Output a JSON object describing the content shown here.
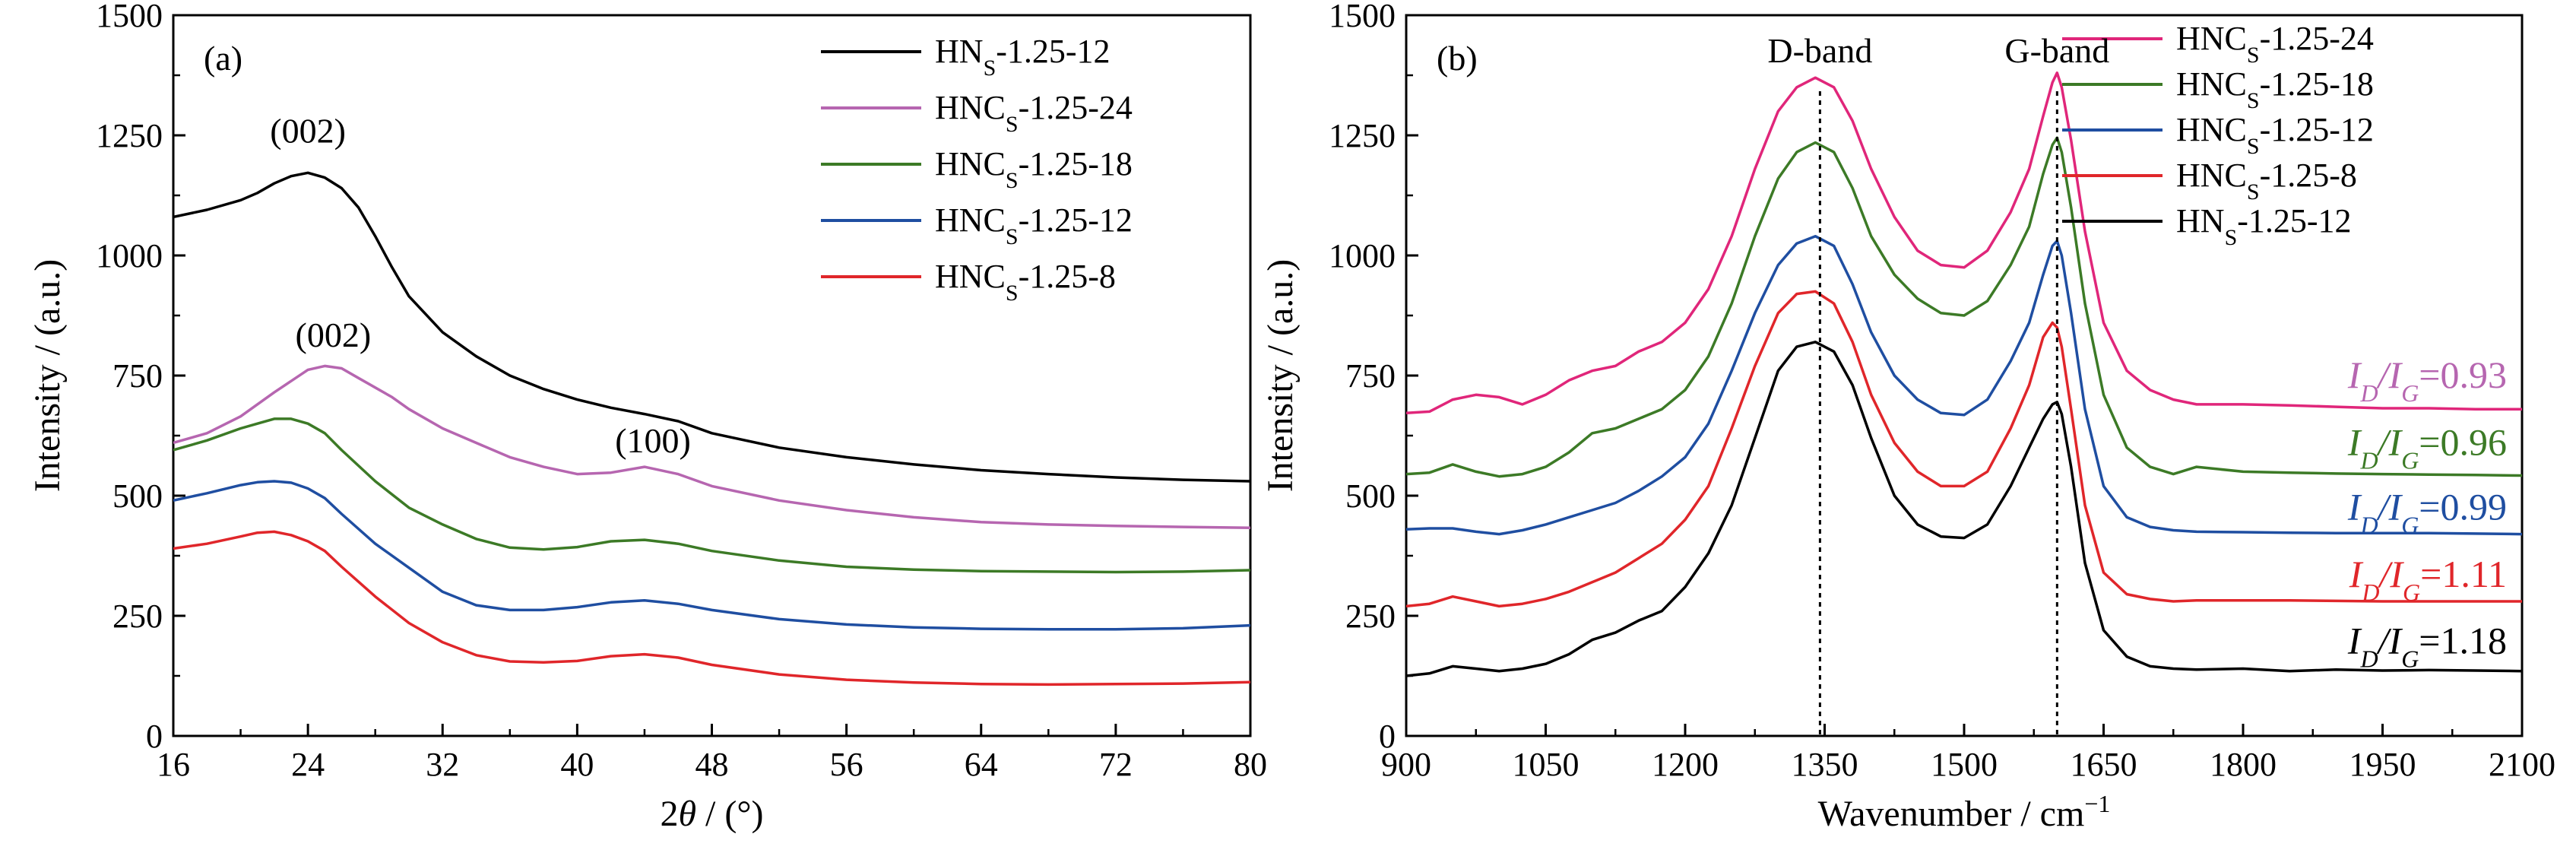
{
  "chart_data": [
    {
      "type": "line",
      "panel_label": "(a)",
      "xlabel_prefix": "2",
      "xlabel_symbol": "θ",
      "xlabel_suffix": " / (°)",
      "ylabel": "Intensity / (a.u.)",
      "xlim": [
        16,
        80
      ],
      "ylim": [
        0,
        1500
      ],
      "xticks": [
        16,
        24,
        32,
        40,
        48,
        56,
        64,
        72,
        80
      ],
      "yticks": [
        0,
        250,
        500,
        750,
        1000,
        1250,
        1500
      ],
      "legend_position": "top-right",
      "series": [
        {
          "name_main": "HN",
          "name_sub": "S",
          "name_rest": "-1.25-12",
          "color": "#000000",
          "x": [
            16,
            18,
            20,
            21,
            22,
            23,
            24,
            25,
            26,
            27,
            28,
            29,
            30,
            32,
            34,
            36,
            38,
            40,
            42,
            44,
            46,
            48,
            52,
            56,
            60,
            64,
            68,
            72,
            76,
            80
          ],
          "y": [
            1080,
            1095,
            1115,
            1130,
            1150,
            1165,
            1172,
            1162,
            1140,
            1100,
            1040,
            975,
            915,
            840,
            790,
            750,
            722,
            700,
            683,
            670,
            655,
            630,
            600,
            580,
            565,
            553,
            545,
            538,
            533,
            530
          ]
        },
        {
          "name_main": "HNC",
          "name_sub": "S",
          "name_rest": "-1.25-24",
          "color": "#b666b0",
          "x": [
            16,
            18,
            20,
            22,
            24,
            25,
            26,
            27,
            28,
            29,
            30,
            32,
            34,
            36,
            38,
            40,
            42,
            44,
            46,
            48,
            52,
            56,
            60,
            64,
            68,
            72,
            76,
            80
          ],
          "y": [
            610,
            630,
            665,
            715,
            762,
            770,
            765,
            745,
            725,
            705,
            680,
            640,
            610,
            580,
            560,
            545,
            548,
            560,
            545,
            520,
            490,
            470,
            455,
            445,
            440,
            437,
            435,
            433
          ]
        },
        {
          "name_main": "HNC",
          "name_sub": "S",
          "name_rest": "-1.25-18",
          "color": "#3c7a26",
          "x": [
            16,
            18,
            20,
            21,
            22,
            23,
            24,
            25,
            26,
            28,
            30,
            32,
            34,
            36,
            38,
            40,
            42,
            44,
            46,
            48,
            52,
            56,
            60,
            64,
            68,
            72,
            76,
            80
          ],
          "y": [
            595,
            615,
            640,
            650,
            660,
            660,
            650,
            630,
            595,
            530,
            475,
            440,
            410,
            392,
            388,
            393,
            405,
            408,
            400,
            385,
            365,
            352,
            346,
            343,
            342,
            341,
            342,
            345
          ]
        },
        {
          "name_main": "HNC",
          "name_sub": "S",
          "name_rest": "-1.25-12",
          "color": "#1f4ea1",
          "x": [
            16,
            18,
            20,
            21,
            22,
            23,
            24,
            25,
            26,
            28,
            30,
            32,
            34,
            36,
            38,
            40,
            42,
            44,
            46,
            48,
            52,
            56,
            60,
            64,
            68,
            72,
            76,
            80
          ],
          "y": [
            490,
            505,
            522,
            528,
            530,
            527,
            515,
            495,
            462,
            400,
            350,
            300,
            272,
            262,
            262,
            268,
            278,
            282,
            275,
            262,
            243,
            232,
            226,
            223,
            222,
            222,
            224,
            230
          ]
        },
        {
          "name_main": "HNC",
          "name_sub": "S",
          "name_rest": "-1.25-8",
          "color": "#e0262a",
          "x": [
            16,
            18,
            20,
            21,
            22,
            23,
            24,
            25,
            26,
            28,
            30,
            32,
            34,
            36,
            38,
            40,
            42,
            44,
            46,
            48,
            52,
            56,
            60,
            64,
            68,
            72,
            76,
            80
          ],
          "y": [
            390,
            400,
            415,
            423,
            425,
            418,
            405,
            385,
            352,
            290,
            235,
            195,
            168,
            155,
            153,
            156,
            166,
            170,
            163,
            148,
            128,
            117,
            111,
            108,
            107,
            108,
            109,
            112
          ]
        }
      ],
      "annotations": [
        {
          "text": "(002)",
          "x": 24,
          "y": 1235
        },
        {
          "text": "(002)",
          "x": 25.5,
          "y": 810
        },
        {
          "text": "(100)",
          "x": 44.5,
          "y": 590
        }
      ]
    },
    {
      "type": "line",
      "panel_label": "(b)",
      "xlabel_main": "Wavenumber / cm",
      "xlabel_sup": "−1",
      "ylabel": "Intensity / (a.u.)",
      "xlim": [
        900,
        2100
      ],
      "ylim": [
        0,
        1500
      ],
      "xticks": [
        900,
        1050,
        1200,
        1350,
        1500,
        1650,
        1800,
        1950,
        2100
      ],
      "yticks": [
        0,
        250,
        500,
        750,
        1000,
        1250,
        1500
      ],
      "legend_position": "top-right",
      "band_labels": [
        {
          "text": "D-band",
          "x": 1345
        },
        {
          "text": "G-band",
          "x": 1600
        }
      ],
      "series": [
        {
          "name_main": "HNC",
          "name_sub": "S",
          "name_rest": "-1.25-24",
          "color": "#e0267a",
          "x": [
            900,
            925,
            950,
            975,
            1000,
            1025,
            1050,
            1075,
            1100,
            1125,
            1150,
            1175,
            1200,
            1225,
            1250,
            1275,
            1300,
            1320,
            1340,
            1360,
            1380,
            1400,
            1425,
            1450,
            1475,
            1500,
            1525,
            1550,
            1570,
            1585,
            1595,
            1600,
            1605,
            1615,
            1630,
            1650,
            1675,
            1700,
            1725,
            1750,
            1800,
            1850,
            1900,
            1950,
            2000,
            2050,
            2100
          ],
          "y": [
            672,
            675,
            700,
            710,
            705,
            690,
            710,
            740,
            760,
            770,
            800,
            820,
            860,
            930,
            1040,
            1180,
            1300,
            1350,
            1370,
            1350,
            1280,
            1180,
            1080,
            1010,
            980,
            975,
            1010,
            1090,
            1180,
            1290,
            1360,
            1380,
            1350,
            1240,
            1050,
            860,
            760,
            720,
            700,
            690,
            690,
            688,
            685,
            682,
            682,
            680,
            680
          ]
        },
        {
          "name_main": "HNC",
          "name_sub": "S",
          "name_rest": "-1.25-18",
          "color": "#3c7a26",
          "x": [
            900,
            925,
            950,
            975,
            1000,
            1025,
            1050,
            1075,
            1100,
            1125,
            1150,
            1175,
            1200,
            1225,
            1250,
            1275,
            1300,
            1320,
            1340,
            1360,
            1380,
            1400,
            1425,
            1450,
            1475,
            1500,
            1525,
            1550,
            1570,
            1585,
            1595,
            1600,
            1605,
            1615,
            1630,
            1650,
            1675,
            1700,
            1725,
            1750,
            1800,
            1850,
            1900,
            1950,
            2000,
            2050,
            2100
          ],
          "y": [
            545,
            548,
            565,
            550,
            540,
            545,
            560,
            590,
            630,
            640,
            660,
            680,
            720,
            790,
            900,
            1040,
            1160,
            1215,
            1235,
            1215,
            1140,
            1040,
            960,
            910,
            880,
            875,
            905,
            980,
            1060,
            1170,
            1230,
            1245,
            1215,
            1100,
            900,
            710,
            600,
            560,
            545,
            560,
            550,
            548,
            546,
            545,
            544,
            543,
            542
          ]
        },
        {
          "name_main": "HNC",
          "name_sub": "S",
          "name_rest": "-1.25-12",
          "color": "#1f4ea1",
          "x": [
            900,
            925,
            950,
            975,
            1000,
            1025,
            1050,
            1075,
            1100,
            1125,
            1150,
            1175,
            1200,
            1225,
            1250,
            1275,
            1300,
            1320,
            1340,
            1360,
            1380,
            1400,
            1425,
            1450,
            1475,
            1500,
            1525,
            1550,
            1570,
            1585,
            1595,
            1600,
            1605,
            1615,
            1630,
            1650,
            1675,
            1700,
            1725,
            1750,
            1800,
            1850,
            1900,
            1950,
            2000,
            2050,
            2100
          ],
          "y": [
            430,
            432,
            432,
            425,
            420,
            428,
            440,
            455,
            470,
            485,
            510,
            540,
            580,
            650,
            760,
            880,
            980,
            1025,
            1040,
            1020,
            940,
            840,
            750,
            700,
            672,
            668,
            700,
            780,
            860,
            960,
            1020,
            1030,
            1000,
            880,
            680,
            520,
            455,
            435,
            428,
            425,
            424,
            423,
            422,
            422,
            422,
            421,
            420
          ]
        },
        {
          "name_main": "HNC",
          "name_sub": "S",
          "name_rest": "-1.25-8",
          "color": "#e0262a",
          "x": [
            900,
            925,
            950,
            975,
            1000,
            1025,
            1050,
            1075,
            1100,
            1125,
            1150,
            1175,
            1200,
            1225,
            1250,
            1275,
            1300,
            1320,
            1340,
            1360,
            1380,
            1400,
            1425,
            1450,
            1475,
            1500,
            1525,
            1550,
            1570,
            1585,
            1595,
            1600,
            1605,
            1615,
            1630,
            1650,
            1675,
            1700,
            1725,
            1750,
            1800,
            1850,
            1900,
            1950,
            2000,
            2050,
            2100
          ],
          "y": [
            270,
            275,
            290,
            280,
            270,
            275,
            285,
            300,
            320,
            340,
            370,
            400,
            450,
            520,
            640,
            770,
            880,
            920,
            925,
            900,
            820,
            710,
            610,
            550,
            520,
            520,
            550,
            640,
            730,
            830,
            860,
            850,
            810,
            680,
            480,
            340,
            295,
            285,
            280,
            282,
            282,
            282,
            281,
            280,
            280,
            280,
            280
          ]
        },
        {
          "name_main": "HN",
          "name_sub": "S",
          "name_rest": "-1.25-12",
          "color": "#000000",
          "x": [
            900,
            925,
            950,
            975,
            1000,
            1025,
            1050,
            1075,
            1100,
            1125,
            1150,
            1175,
            1200,
            1225,
            1250,
            1275,
            1300,
            1320,
            1340,
            1360,
            1380,
            1400,
            1425,
            1450,
            1475,
            1500,
            1525,
            1550,
            1570,
            1585,
            1595,
            1600,
            1605,
            1615,
            1630,
            1650,
            1675,
            1700,
            1725,
            1750,
            1800,
            1850,
            1900,
            1950,
            2000,
            2050,
            2100
          ],
          "y": [
            125,
            130,
            145,
            140,
            135,
            140,
            150,
            170,
            200,
            215,
            240,
            260,
            310,
            380,
            480,
            620,
            760,
            810,
            820,
            800,
            730,
            620,
            500,
            440,
            415,
            412,
            440,
            520,
            600,
            660,
            690,
            695,
            670,
            560,
            360,
            220,
            165,
            145,
            140,
            138,
            140,
            135,
            138,
            136,
            137,
            136,
            135
          ]
        }
      ],
      "ratio_labels": [
        {
          "prefix": "I",
          "sub1": "D",
          "slash": "/",
          "prefix2": "I",
          "sub2": "G",
          "value": "=0.93",
          "color": "#b666b0",
          "y": 725
        },
        {
          "prefix": "I",
          "sub1": "D",
          "slash": "/",
          "prefix2": "I",
          "sub2": "G",
          "value": "=0.96",
          "color": "#3c7a26",
          "y": 585
        },
        {
          "prefix": "I",
          "sub1": "D",
          "slash": "/",
          "prefix2": "I",
          "sub2": "G",
          "value": "=0.99",
          "color": "#1f4ea1",
          "y": 450
        },
        {
          "prefix": "I",
          "sub1": "D",
          "slash": "/",
          "prefix2": "I",
          "sub2": "G",
          "value": "=1.11",
          "color": "#e0262a",
          "y": 310
        },
        {
          "prefix": "I",
          "sub1": "D",
          "slash": "/",
          "prefix2": "I",
          "sub2": "G",
          "value": "=1.18",
          "color": "#000000",
          "y": 172
        }
      ]
    }
  ]
}
